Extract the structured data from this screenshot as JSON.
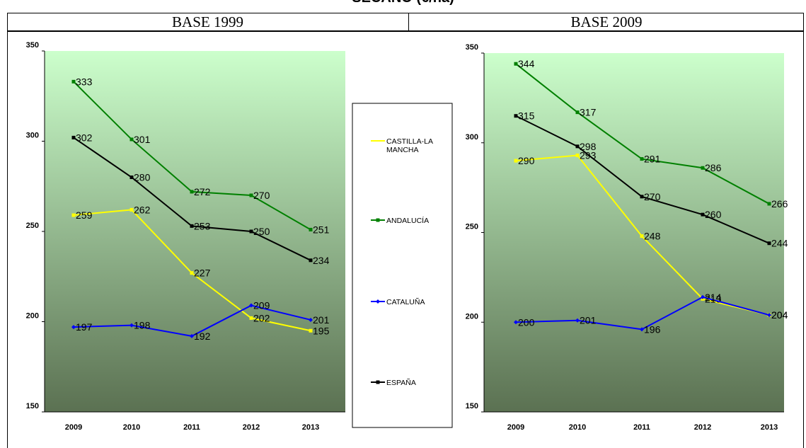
{
  "title": "SECANO (€/ha)",
  "panels": {
    "left": "BASE 1999",
    "right": "BASE 2009"
  },
  "colors": {
    "castilla": "#ffff00",
    "andalucia": "#008000",
    "cataluna": "#0000ff",
    "espana": "#000000",
    "bg_top": "#ccffcc",
    "bg_bottom": "#5b7152"
  },
  "chart_data": [
    {
      "type": "line",
      "panel": "BASE 1999",
      "x": [
        "2009",
        "2010",
        "2011",
        "2012",
        "2013"
      ],
      "ylim": [
        150,
        350
      ],
      "yticks": [
        150,
        200,
        250,
        300,
        350
      ],
      "series": [
        {
          "name": "CASTILLA-LA MANCHA",
          "color": "#ffff00",
          "values": [
            259,
            262,
            227,
            202,
            195
          ]
        },
        {
          "name": "ANDALUCÍA",
          "color": "#008000",
          "values": [
            333,
            301,
            272,
            270,
            251
          ]
        },
        {
          "name": "CATALUÑA",
          "color": "#0000ff",
          "values": [
            197,
            198,
            192,
            209,
            201
          ]
        },
        {
          "name": "ESPAÑA",
          "color": "#000000",
          "values": [
            302,
            280,
            253,
            250,
            234
          ]
        }
      ]
    },
    {
      "type": "line",
      "panel": "BASE 2009",
      "x": [
        "2009",
        "2010",
        "2011",
        "2012",
        "2013"
      ],
      "ylim": [
        150,
        350
      ],
      "yticks": [
        150,
        200,
        250,
        300,
        350
      ],
      "series": [
        {
          "name": "CASTILLA-LA MANCHA",
          "color": "#ffff00",
          "values": [
            290,
            293,
            248,
            213,
            204
          ]
        },
        {
          "name": "ANDALUCÍA",
          "color": "#008000",
          "values": [
            344,
            317,
            291,
            286,
            266
          ]
        },
        {
          "name": "CATALUÑA",
          "color": "#0000ff",
          "values": [
            200,
            201,
            196,
            214,
            204
          ]
        },
        {
          "name": "ESPAÑA",
          "color": "#000000",
          "values": [
            315,
            298,
            270,
            260,
            244
          ]
        }
      ]
    }
  ],
  "legend": {
    "items": [
      {
        "lines": [
          "CASTILLA-LA",
          "MANCHA"
        ],
        "color": "#ffff00",
        "marker": "line"
      },
      {
        "lines": [
          "ANDALUCÍA"
        ],
        "color": "#008000",
        "marker": "square"
      },
      {
        "lines": [
          "CATALUÑA"
        ],
        "color": "#0000ff",
        "marker": "diamond"
      },
      {
        "lines": [
          "ESPAÑA"
        ],
        "color": "#000000",
        "marker": "square"
      }
    ]
  }
}
